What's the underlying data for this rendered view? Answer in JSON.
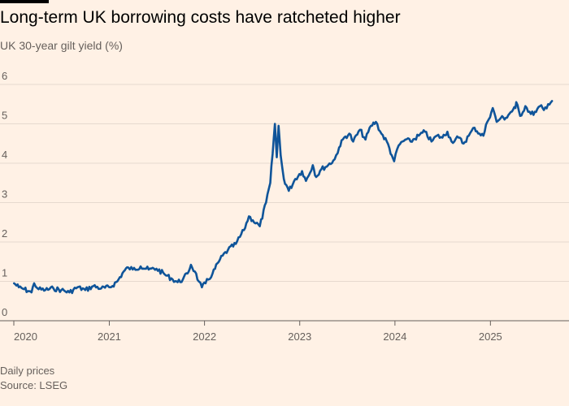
{
  "title": "Long-term UK borrowing costs have ratcheted higher",
  "subtitle": "UK 30-year gilt yield (%)",
  "footer": {
    "note": "Daily prices",
    "source": "Source: LSEG"
  },
  "colors": {
    "background": "#fff1e5",
    "line": "#0f5499",
    "grid": "#e6d9ce",
    "axis": "#66605c"
  },
  "chart_data": {
    "type": "line",
    "title": "Long-term UK borrowing costs have ratcheted higher",
    "ylabel": "UK 30-year gilt yield (%)",
    "xlabel": "",
    "ylim": [
      0,
      6
    ],
    "xlim": [
      "2020-01-01",
      "2025-08-31"
    ],
    "y_ticks": [
      0,
      1,
      2,
      3,
      4,
      5,
      6
    ],
    "y_tick_labels": [
      "0",
      "1",
      "2",
      "3",
      "4",
      "5",
      "6"
    ],
    "x_ticks": [
      "2020-01-01",
      "2021-01-01",
      "2022-01-01",
      "2023-01-01",
      "2024-01-01",
      "2025-01-01"
    ],
    "x_tick_labels": [
      "2020",
      "2021",
      "2022",
      "2023",
      "2024",
      "2025"
    ],
    "grid": true,
    "legend": "none",
    "series": [
      {
        "points": [
          [
            "2020-01-02",
            0.95
          ],
          [
            "2020-01-20",
            0.85
          ],
          [
            "2020-02-10",
            0.8
          ],
          [
            "2020-02-28",
            0.75
          ],
          [
            "2020-03-09",
            0.72
          ],
          [
            "2020-03-19",
            0.95
          ],
          [
            "2020-04-05",
            0.8
          ],
          [
            "2020-05-01",
            0.78
          ],
          [
            "2020-06-01",
            0.82
          ],
          [
            "2020-07-01",
            0.78
          ],
          [
            "2020-08-01",
            0.72
          ],
          [
            "2020-09-01",
            0.85
          ],
          [
            "2020-10-01",
            0.78
          ],
          [
            "2020-11-01",
            0.88
          ],
          [
            "2020-12-01",
            0.82
          ],
          [
            "2021-01-04",
            0.85
          ],
          [
            "2021-02-01",
            1.0
          ],
          [
            "2021-02-25",
            1.25
          ],
          [
            "2021-03-15",
            1.35
          ],
          [
            "2021-04-01",
            1.3
          ],
          [
            "2021-05-01",
            1.38
          ],
          [
            "2021-06-01",
            1.3
          ],
          [
            "2021-07-01",
            1.32
          ],
          [
            "2021-08-01",
            1.18
          ],
          [
            "2021-09-01",
            1.05
          ],
          [
            "2021-09-20",
            0.98
          ],
          [
            "2021-10-10",
            1.05
          ],
          [
            "2021-10-28",
            1.2
          ],
          [
            "2021-11-10",
            1.42
          ],
          [
            "2021-11-25",
            1.25
          ],
          [
            "2021-12-10",
            1.0
          ],
          [
            "2021-12-22",
            0.85
          ],
          [
            "2022-01-05",
            0.95
          ],
          [
            "2022-02-01",
            1.2
          ],
          [
            "2022-03-01",
            1.55
          ],
          [
            "2022-04-01",
            1.8
          ],
          [
            "2022-05-01",
            1.95
          ],
          [
            "2022-06-01",
            2.3
          ],
          [
            "2022-06-20",
            2.65
          ],
          [
            "2022-07-05",
            2.55
          ],
          [
            "2022-08-01",
            2.4
          ],
          [
            "2022-08-25",
            3.0
          ],
          [
            "2022-09-10",
            3.5
          ],
          [
            "2022-09-28",
            5.0
          ],
          [
            "2022-10-05",
            4.15
          ],
          [
            "2022-10-12",
            4.95
          ],
          [
            "2022-10-20",
            4.2
          ],
          [
            "2022-11-01",
            3.6
          ],
          [
            "2022-11-20",
            3.3
          ],
          [
            "2022-12-15",
            3.6
          ],
          [
            "2023-01-10",
            3.8
          ],
          [
            "2023-01-25",
            3.55
          ],
          [
            "2023-02-20",
            3.95
          ],
          [
            "2023-03-05",
            3.65
          ],
          [
            "2023-03-25",
            3.85
          ],
          [
            "2023-04-20",
            3.95
          ],
          [
            "2023-05-15",
            4.1
          ],
          [
            "2023-06-01",
            4.4
          ],
          [
            "2023-06-20",
            4.65
          ],
          [
            "2023-07-10",
            4.75
          ],
          [
            "2023-07-25",
            4.55
          ],
          [
            "2023-08-20",
            4.85
          ],
          [
            "2023-09-10",
            4.6
          ],
          [
            "2023-10-01",
            4.95
          ],
          [
            "2023-10-20",
            5.05
          ],
          [
            "2023-11-10",
            4.75
          ],
          [
            "2023-12-01",
            4.55
          ],
          [
            "2023-12-20",
            4.2
          ],
          [
            "2023-12-29",
            4.05
          ],
          [
            "2024-01-15",
            4.45
          ],
          [
            "2024-02-10",
            4.6
          ],
          [
            "2024-03-01",
            4.55
          ],
          [
            "2024-04-01",
            4.7
          ],
          [
            "2024-04-25",
            4.8
          ],
          [
            "2024-05-20",
            4.55
          ],
          [
            "2024-06-10",
            4.7
          ],
          [
            "2024-07-01",
            4.65
          ],
          [
            "2024-07-20",
            4.8
          ],
          [
            "2024-08-05",
            4.55
          ],
          [
            "2024-09-01",
            4.65
          ],
          [
            "2024-09-20",
            4.5
          ],
          [
            "2024-10-10",
            4.7
          ],
          [
            "2024-11-01",
            4.9
          ],
          [
            "2024-11-20",
            4.75
          ],
          [
            "2024-12-05",
            4.7
          ],
          [
            "2024-12-20",
            5.05
          ],
          [
            "2025-01-10",
            5.4
          ],
          [
            "2025-01-25",
            5.05
          ],
          [
            "2025-02-10",
            5.15
          ],
          [
            "2025-03-01",
            5.15
          ],
          [
            "2025-03-20",
            5.3
          ],
          [
            "2025-04-07",
            5.4
          ],
          [
            "2025-04-10",
            5.55
          ],
          [
            "2025-04-25",
            5.2
          ],
          [
            "2025-05-15",
            5.45
          ],
          [
            "2025-06-05",
            5.25
          ],
          [
            "2025-06-25",
            5.3
          ],
          [
            "2025-07-10",
            5.45
          ],
          [
            "2025-07-25",
            5.35
          ],
          [
            "2025-08-10",
            5.5
          ],
          [
            "2025-08-25",
            5.58
          ]
        ]
      }
    ]
  }
}
